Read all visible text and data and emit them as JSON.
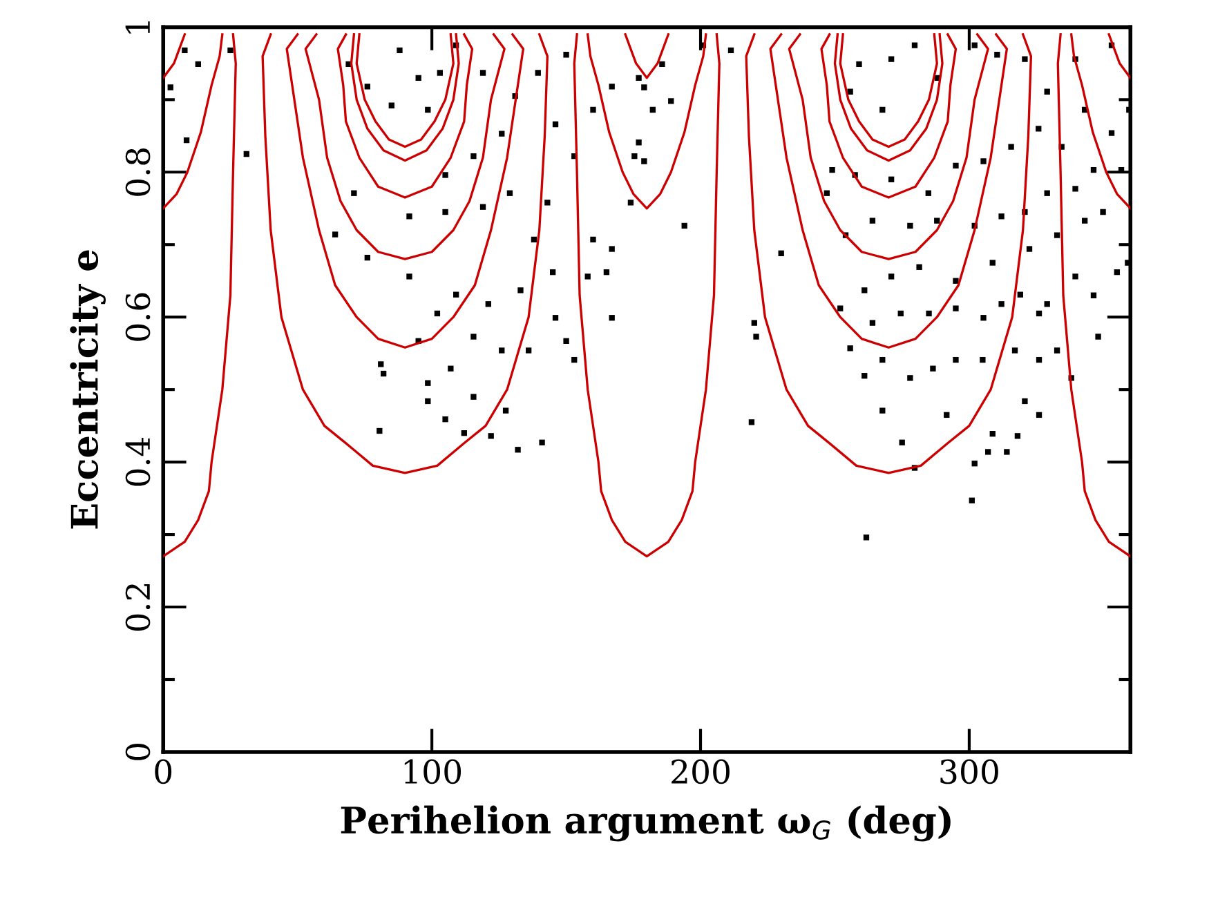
{
  "chart_data": {
    "type": "scatter",
    "xlabel": "Perihelion argument ω$_{G}$ (deg)",
    "ylabel": "Eccentricity e",
    "xlim": [
      0,
      360
    ],
    "ylim": [
      0,
      1
    ],
    "xticks": [
      0,
      100,
      200,
      300
    ],
    "yticks": [
      0,
      {
        "value": 0.1,
        "label": null
      },
      {
        "value": 0.2,
        "label": "0.2"
      },
      {
        "value": 0.3,
        "label": null
      },
      {
        "value": 0.4,
        "label": "0.4"
      },
      {
        "value": 0.5,
        "label": null
      },
      {
        "value": 0.6,
        "label": "0.6"
      },
      {
        "value": 0.7,
        "label": null
      },
      {
        "value": 0.8,
        "label": "0.8"
      },
      {
        "value": 0.9,
        "label": null
      },
      1
    ],
    "grid": false,
    "series": [
      {
        "marker": "square",
        "color": "#000000",
        "x": [
          8.7,
          31,
          80.5,
          81,
          82,
          98.5,
          98.5,
          105,
          112,
          132,
          141,
          122,
          127.5,
          115.5,
          107,
          95,
          102,
          115.5,
          126,
          136,
          146,
          150,
          153,
          158,
          167,
          165,
          160,
          167,
          174,
          175.4,
          160,
          167,
          177,
          146,
          153,
          143,
          138,
          145,
          133,
          121,
          109,
          91.6,
          76,
          64,
          71,
          91.6,
          105,
          119,
          129,
          105,
          115.5,
          126,
          131,
          119,
          139.5,
          150,
          98.5,
          103,
          76,
          85,
          95,
          69,
          25,
          8,
          2.7,
          13,
          88,
          109,
          194,
          230,
          220,
          220.7,
          219,
          261.7,
          301,
          275,
          279.7,
          307,
          314,
          302,
          308.7,
          318,
          326,
          320.7,
          291.6,
          267.7,
          278,
          261,
          255.7,
          267.7,
          286.5,
          295,
          305,
          317,
          326,
          332.7,
          338,
          348,
          355,
          359,
          346.3,
          339.5,
          329,
          326,
          319,
          312,
          305.3,
          295,
          285,
          274.5,
          264,
          252,
          261,
          271,
          281.4,
          295,
          308.7,
          322.4,
          332.7,
          343,
          349.8,
          339.5,
          346.3,
          356.6,
          353,
          359.5,
          343,
          334.4,
          329,
          320.7,
          312,
          302,
          288,
          278,
          264,
          254,
          247,
          257.5,
          271,
          284.8,
          295,
          305.3,
          315.6,
          325.8,
          329,
          339.5,
          353,
          320.7,
          310.4,
          302,
          288.2,
          267.7,
          255.7,
          259,
          271,
          279.7,
          249,
          211.3,
          201,
          182.2,
          179,
          185.7,
          189,
          177,
          179
        ],
        "values": [
          0.844,
          0.825,
          0.443,
          0.535,
          0.522,
          0.509,
          0.484,
          0.459,
          0.44,
          0.417,
          0.427,
          0.436,
          0.471,
          0.49,
          0.529,
          0.567,
          0.605,
          0.573,
          0.554,
          0.554,
          0.599,
          0.567,
          0.541,
          0.656,
          0.599,
          0.662,
          0.707,
          0.694,
          0.758,
          0.822,
          0.886,
          0.918,
          0.93,
          0.866,
          0.822,
          0.758,
          0.707,
          0.662,
          0.637,
          0.618,
          0.631,
          0.656,
          0.682,
          0.714,
          0.771,
          0.739,
          0.745,
          0.752,
          0.771,
          0.796,
          0.822,
          0.853,
          0.905,
          0.937,
          0.937,
          0.962,
          0.886,
          0.937,
          0.918,
          0.892,
          0.93,
          0.949,
          0.968,
          0.968,
          0.917,
          0.949,
          0.968,
          0.975,
          0.726,
          0.688,
          0.592,
          0.573,
          0.455,
          0.296,
          0.347,
          0.427,
          0.392,
          0.414,
          0.414,
          0.398,
          0.439,
          0.436,
          0.465,
          0.484,
          0.465,
          0.471,
          0.516,
          0.519,
          0.557,
          0.541,
          0.529,
          0.541,
          0.541,
          0.554,
          0.541,
          0.554,
          0.516,
          0.573,
          0.662,
          0.675,
          0.63,
          0.656,
          0.618,
          0.605,
          0.631,
          0.618,
          0.599,
          0.612,
          0.605,
          0.605,
          0.592,
          0.612,
          0.637,
          0.656,
          0.669,
          0.65,
          0.675,
          0.694,
          0.713,
          0.733,
          0.745,
          0.777,
          0.803,
          0.803,
          0.854,
          0.886,
          0.886,
          0.835,
          0.771,
          0.745,
          0.739,
          0.726,
          0.733,
          0.726,
          0.733,
          0.713,
          0.771,
          0.796,
          0.79,
          0.771,
          0.809,
          0.815,
          0.835,
          0.86,
          0.911,
          0.956,
          0.975,
          0.956,
          0.962,
          0.975,
          0.93,
          0.886,
          0.911,
          0.949,
          0.956,
          0.975,
          0.803,
          0.968,
          0.975,
          0.886,
          0.917,
          0.949,
          0.898,
          0.841,
          0.815
        ]
      },
      {
        "type": "line",
        "color": "#cc0000",
        "x": [
          40,
          37,
          38,
          40,
          44,
          52,
          60,
          68,
          78,
          90,
          102,
          112,
          120,
          128,
          136,
          140,
          142,
          143,
          140
        ],
        "values": [
          0.99,
          0.96,
          0.85,
          0.72,
          0.6,
          0.5,
          0.45,
          0.426,
          0.395,
          0.385,
          0.395,
          0.426,
          0.45,
          0.5,
          0.6,
          0.72,
          0.85,
          0.96,
          0.99
        ]
      },
      {
        "type": "line",
        "color": "#cc0000",
        "x": [
          50,
          46,
          52,
          58,
          64,
          72,
          80,
          90,
          100,
          108,
          116,
          122,
          128,
          134,
          130
        ],
        "values": [
          0.99,
          0.97,
          0.82,
          0.72,
          0.644,
          0.6,
          0.57,
          0.558,
          0.57,
          0.6,
          0.644,
          0.72,
          0.82,
          0.97,
          0.99
        ]
      },
      {
        "type": "line",
        "color": "#cc0000",
        "x": [
          57,
          53,
          58,
          61,
          66,
          72,
          80,
          90,
          100,
          108,
          114,
          119,
          122,
          127,
          123
        ],
        "values": [
          0.99,
          0.97,
          0.9,
          0.82,
          0.76,
          0.72,
          0.69,
          0.68,
          0.69,
          0.72,
          0.76,
          0.82,
          0.9,
          0.97,
          0.99
        ]
      },
      {
        "type": "line",
        "color": "#cc0000",
        "x": [
          68,
          65,
          67,
          68,
          73,
          80,
          90,
          100,
          107,
          112,
          113,
          115,
          112
        ],
        "values": [
          0.99,
          0.97,
          0.92,
          0.87,
          0.82,
          0.78,
          0.765,
          0.78,
          0.82,
          0.87,
          0.92,
          0.97,
          0.99
        ]
      },
      {
        "type": "line",
        "color": "#cc0000",
        "x": [
          71,
          70,
          72,
          76,
          82,
          90,
          98,
          104,
          108,
          110,
          109
        ],
        "values": [
          0.99,
          0.95,
          0.9,
          0.86,
          0.83,
          0.816,
          0.83,
          0.86,
          0.9,
          0.95,
          0.99
        ]
      },
      {
        "type": "line",
        "color": "#cc0000",
        "x": [
          73,
          72,
          75,
          79,
          84,
          90,
          96,
          101,
          105,
          108,
          107
        ],
        "values": [
          0.99,
          0.95,
          0.9,
          0.87,
          0.845,
          0.835,
          0.845,
          0.87,
          0.9,
          0.95,
          0.99
        ]
      },
      {
        "type": "line",
        "color": "#cc0000",
        "x": [
          220,
          217,
          218,
          220,
          224,
          232,
          240,
          248,
          258,
          270,
          282,
          292,
          300,
          308,
          316,
          320,
          322,
          323,
          320
        ],
        "values": [
          0.99,
          0.96,
          0.85,
          0.72,
          0.6,
          0.5,
          0.45,
          0.426,
          0.395,
          0.385,
          0.395,
          0.426,
          0.45,
          0.5,
          0.6,
          0.72,
          0.85,
          0.96,
          0.99
        ]
      },
      {
        "type": "line",
        "color": "#cc0000",
        "x": [
          230,
          226,
          232,
          238,
          244,
          252,
          260,
          270,
          280,
          288,
          296,
          302,
          308,
          314,
          310
        ],
        "values": [
          0.99,
          0.97,
          0.82,
          0.72,
          0.644,
          0.6,
          0.57,
          0.558,
          0.57,
          0.6,
          0.644,
          0.72,
          0.82,
          0.97,
          0.99
        ]
      },
      {
        "type": "line",
        "color": "#cc0000",
        "x": [
          237,
          233,
          238,
          241,
          246,
          252,
          260,
          270,
          280,
          288,
          294,
          299,
          302,
          307,
          303
        ],
        "values": [
          0.99,
          0.97,
          0.9,
          0.82,
          0.76,
          0.72,
          0.69,
          0.68,
          0.69,
          0.72,
          0.76,
          0.82,
          0.9,
          0.97,
          0.99
        ]
      },
      {
        "type": "line",
        "color": "#cc0000",
        "x": [
          248,
          245,
          247,
          248,
          253,
          260,
          270,
          280,
          287,
          292,
          293,
          295,
          292
        ],
        "values": [
          0.99,
          0.97,
          0.92,
          0.87,
          0.82,
          0.78,
          0.765,
          0.78,
          0.82,
          0.87,
          0.92,
          0.97,
          0.99
        ]
      },
      {
        "type": "line",
        "color": "#cc0000",
        "x": [
          251,
          250,
          252,
          256,
          262,
          270,
          278,
          284,
          288,
          290,
          289
        ],
        "values": [
          0.99,
          0.95,
          0.9,
          0.86,
          0.83,
          0.816,
          0.83,
          0.86,
          0.9,
          0.95,
          0.99
        ]
      },
      {
        "type": "line",
        "color": "#cc0000",
        "x": [
          253,
          252,
          255,
          259,
          264,
          270,
          276,
          281,
          285,
          288,
          287
        ],
        "values": [
          0.99,
          0.95,
          0.9,
          0.87,
          0.845,
          0.835,
          0.845,
          0.87,
          0.9,
          0.95,
          0.99
        ]
      },
      {
        "type": "line",
        "color": "#cc0000",
        "x": [
          154,
          153,
          154,
          155,
          158,
          162,
          163,
          167,
          172,
          180,
          188,
          193,
          197,
          198,
          202,
          205,
          206,
          207,
          206
        ],
        "values": [
          0.99,
          0.95,
          0.8,
          0.63,
          0.5,
          0.4,
          0.36,
          0.32,
          0.29,
          0.27,
          0.29,
          0.32,
          0.36,
          0.4,
          0.5,
          0.63,
          0.8,
          0.95,
          0.99
        ]
      },
      {
        "type": "line",
        "color": "#cc0000",
        "x": [
          0,
          8,
          13,
          17,
          18,
          22,
          25,
          26,
          27,
          26
        ],
        "values": [
          0.27,
          0.29,
          0.32,
          0.36,
          0.4,
          0.5,
          0.63,
          0.8,
          0.95,
          0.99
        ]
      },
      {
        "type": "line",
        "color": "#cc0000",
        "x": [
          334,
          333,
          334,
          335,
          338,
          342,
          343,
          347,
          352,
          360
        ],
        "values": [
          0.99,
          0.95,
          0.8,
          0.63,
          0.5,
          0.4,
          0.36,
          0.32,
          0.29,
          0.27
        ]
      },
      {
        "type": "line",
        "color": "#cc0000",
        "x": [
          0,
          5,
          9,
          14,
          18,
          21,
          22
        ],
        "values": [
          0.75,
          0.77,
          0.8,
          0.855,
          0.92,
          0.96,
          0.99
        ]
      },
      {
        "type": "line",
        "color": "#cc0000",
        "x": [
          158,
          159,
          162,
          166,
          171,
          175,
          180,
          185,
          189,
          194,
          198,
          201,
          202
        ],
        "values": [
          0.99,
          0.96,
          0.92,
          0.855,
          0.8,
          0.77,
          0.75,
          0.77,
          0.8,
          0.855,
          0.92,
          0.96,
          0.99
        ]
      },
      {
        "type": "line",
        "color": "#cc0000",
        "x": [
          338,
          339,
          342,
          346,
          351,
          355,
          360
        ],
        "values": [
          0.99,
          0.96,
          0.92,
          0.855,
          0.8,
          0.77,
          0.75
        ]
      },
      {
        "type": "line",
        "color": "#cc0000",
        "x": [
          0,
          4,
          8
        ],
        "values": [
          0.93,
          0.95,
          0.99
        ]
      },
      {
        "type": "line",
        "color": "#cc0000",
        "x": [
          172,
          176,
          180,
          184,
          188
        ],
        "values": [
          0.99,
          0.95,
          0.93,
          0.95,
          0.99
        ]
      },
      {
        "type": "line",
        "color": "#cc0000",
        "x": [
          352,
          356,
          360
        ],
        "values": [
          0.99,
          0.95,
          0.93
        ]
      }
    ]
  }
}
